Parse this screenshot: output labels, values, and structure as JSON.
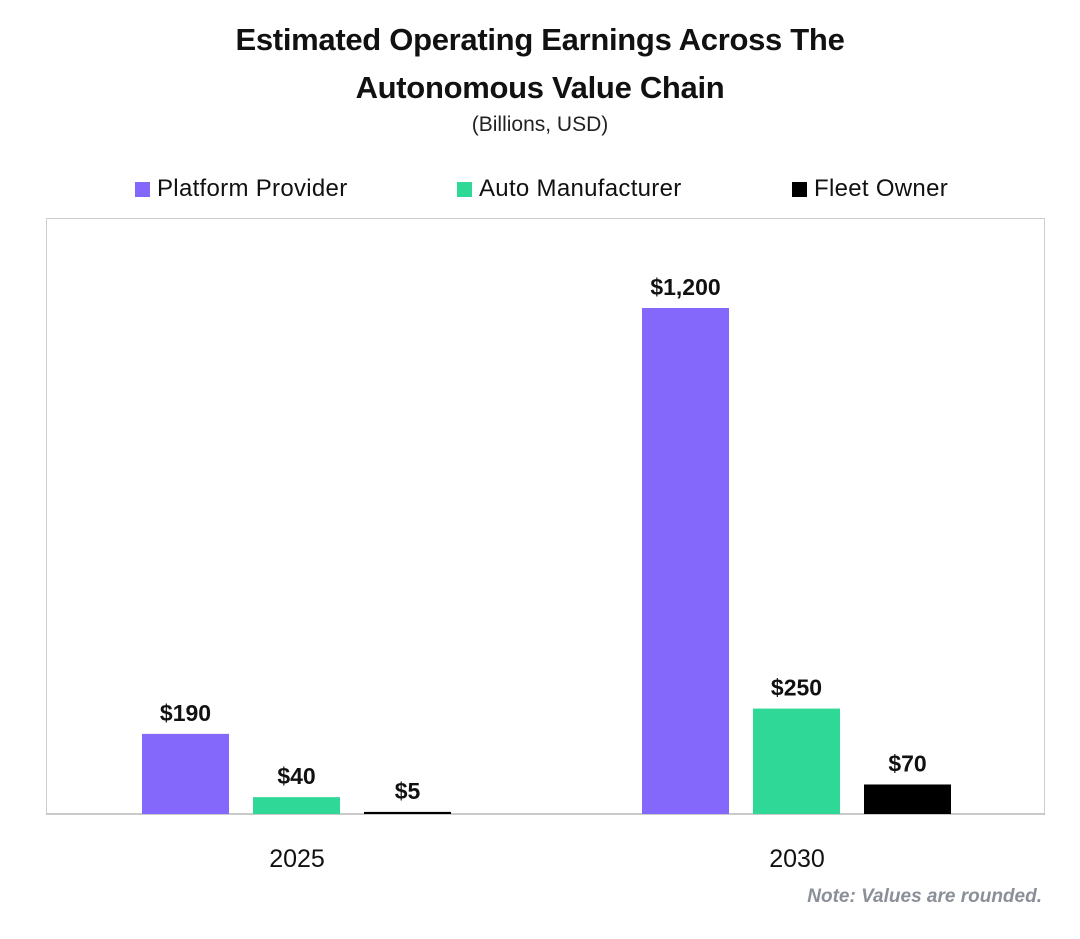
{
  "title_line1": "Estimated Operating Earnings Across The",
  "title_line2": "Autonomous Value Chain",
  "subtitle": "(Billions, USD)",
  "note": "Note: Values are rounded.",
  "chart_data": {
    "type": "bar",
    "title": "Estimated Operating Earnings Across The Autonomous Value Chain",
    "subtitle": "(Billions, USD)",
    "categories": [
      "2025",
      "2030"
    ],
    "series": [
      {
        "name": "Platform Provider",
        "color": "#8468fb",
        "values": [
          190,
          1200
        ],
        "labels": [
          "$190",
          "$1,200"
        ]
      },
      {
        "name": "Auto Manufacturer",
        "color": "#2fd897",
        "values": [
          40,
          250
        ],
        "labels": [
          "$40",
          "$250"
        ]
      },
      {
        "name": "Fleet Owner",
        "color": "#000000",
        "values": [
          5,
          70
        ],
        "labels": [
          "$5",
          "$70"
        ]
      }
    ],
    "xlabel": "",
    "ylabel": "",
    "ylim": [
      0,
      1400
    ],
    "grid": false,
    "legend_position": "top"
  }
}
